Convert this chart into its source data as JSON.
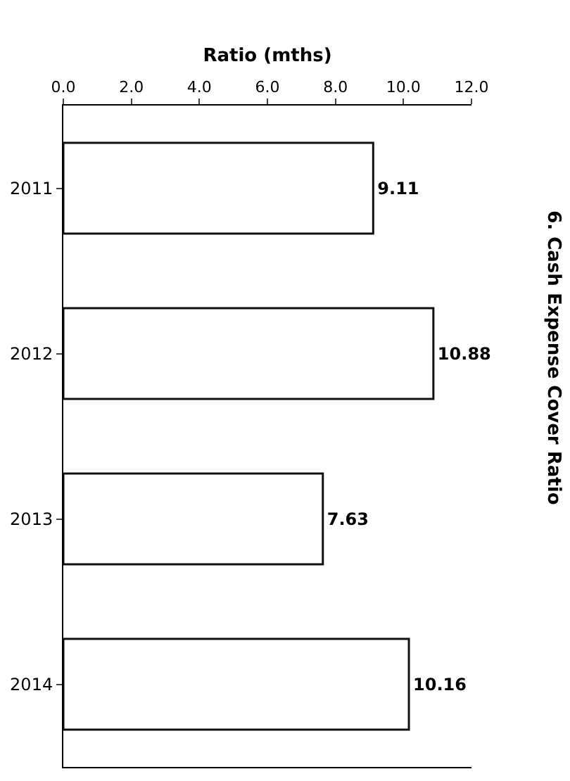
{
  "chart_data": {
    "type": "bar",
    "orientation": "horizontal",
    "title": "6. Cash Expense Cover Ratio",
    "xlabel": "Ratio (mths)",
    "categories": [
      "2011",
      "2012",
      "2013",
      "2014"
    ],
    "values": [
      9.11,
      10.88,
      7.63,
      10.16
    ],
    "color": "#ffffff",
    "xlim": [
      0,
      12
    ],
    "xticks": [
      {
        "value": 0,
        "label": "0.0"
      },
      {
        "value": 2,
        "label": "2.0"
      },
      {
        "value": 4,
        "label": "4.0"
      },
      {
        "value": 6,
        "label": "6.0"
      },
      {
        "value": 8,
        "label": "8.0"
      },
      {
        "value": 10,
        "label": "10.0"
      },
      {
        "value": 12,
        "label": "12.0"
      }
    ],
    "data_labels": true,
    "grid": false,
    "legend": false
  }
}
